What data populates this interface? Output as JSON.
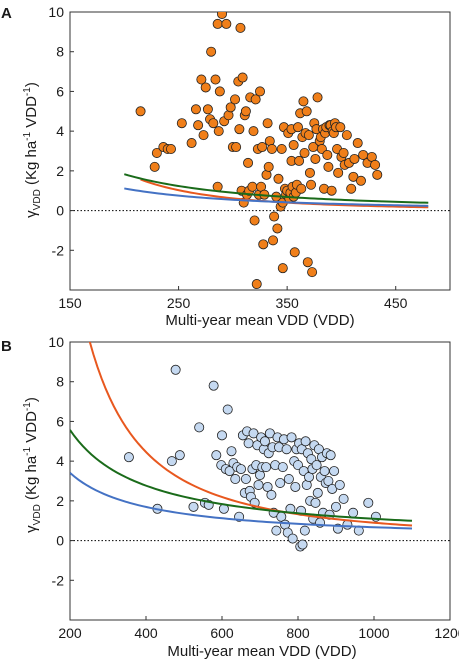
{
  "chart_data": [
    {
      "type": "scatter",
      "panel_label": "A",
      "xlabel": "Multi-year mean VDD (VDD)",
      "ylabel": "γVDD (Kg ha-1 VDD-1)",
      "xlim": [
        150,
        500
      ],
      "ylim": [
        -4,
        10
      ],
      "xticks": [
        150,
        250,
        350,
        450
      ],
      "yticks": [
        -2,
        0,
        2,
        4,
        6,
        8,
        10
      ],
      "grid": false,
      "zero_line": true,
      "marker_color": "#f07f1a",
      "points": [
        [
          215,
          5.0
        ],
        [
          228,
          2.2
        ],
        [
          230,
          2.9
        ],
        [
          236,
          3.2
        ],
        [
          240,
          3.1
        ],
        [
          243,
          3.1
        ],
        [
          253,
          4.4
        ],
        [
          262,
          3.4
        ],
        [
          266,
          5.1
        ],
        [
          268,
          4.3
        ],
        [
          271,
          6.6
        ],
        [
          273,
          3.8
        ],
        [
          275,
          6.2
        ],
        [
          277,
          5.1
        ],
        [
          279,
          4.6
        ],
        [
          280,
          8.0
        ],
        [
          282,
          4.4
        ],
        [
          284,
          6.6
        ],
        [
          286,
          9.4
        ],
        [
          286,
          1.2
        ],
        [
          287,
          4.0
        ],
        [
          288,
          6.0
        ],
        [
          290,
          9.9
        ],
        [
          292,
          4.5
        ],
        [
          294,
          9.4
        ],
        [
          296,
          4.8
        ],
        [
          298,
          5.2
        ],
        [
          300,
          3.2
        ],
        [
          302,
          5.6
        ],
        [
          303,
          3.2
        ],
        [
          305,
          6.5
        ],
        [
          306,
          4.1
        ],
        [
          307,
          9.2
        ],
        [
          308,
          1.0
        ],
        [
          309,
          6.7
        ],
        [
          310,
          0.4
        ],
        [
          311,
          4.8
        ],
        [
          312,
          5.0
        ],
        [
          313,
          0.8
        ],
        [
          314,
          2.4
        ],
        [
          315,
          1.0
        ],
        [
          316,
          5.7
        ],
        [
          318,
          1.2
        ],
        [
          319,
          4.0
        ],
        [
          320,
          -0.5
        ],
        [
          321,
          5.6
        ],
        [
          322,
          -3.7
        ],
        [
          323,
          3.1
        ],
        [
          324,
          0.8
        ],
        [
          325,
          6.0
        ],
        [
          326,
          1.2
        ],
        [
          327,
          3.2
        ],
        [
          328,
          -1.7
        ],
        [
          329,
          0.8
        ],
        [
          331,
          1.8
        ],
        [
          332,
          4.4
        ],
        [
          333,
          2.2
        ],
        [
          334,
          3.5
        ],
        [
          336,
          3.1
        ],
        [
          337,
          -1.5
        ],
        [
          338,
          -0.3
        ],
        [
          340,
          0.7
        ],
        [
          341,
          -0.9
        ],
        [
          342,
          1.6
        ],
        [
          344,
          0.2
        ],
        [
          345,
          3.1
        ],
        [
          346,
          0.4
        ],
        [
          346,
          -2.9
        ],
        [
          347,
          4.2
        ],
        [
          348,
          1.1
        ],
        [
          349,
          0.8
        ],
        [
          350,
          1.0
        ],
        [
          351,
          3.9
        ],
        [
          352,
          0.6
        ],
        [
          353,
          0.9
        ],
        [
          354,
          2.5
        ],
        [
          354,
          4.1
        ],
        [
          355,
          1.2
        ],
        [
          356,
          0.7
        ],
        [
          356,
          3.3
        ],
        [
          357,
          -2.1
        ],
        [
          358,
          0.9
        ],
        [
          359,
          1.3
        ],
        [
          360,
          4.2
        ],
        [
          361,
          2.5
        ],
        [
          362,
          4.9
        ],
        [
          363,
          1.1
        ],
        [
          364,
          3.7
        ],
        [
          365,
          5.5
        ],
        [
          366,
          2.9
        ],
        [
          367,
          3.9
        ],
        [
          368,
          5.0
        ],
        [
          369,
          -2.6
        ],
        [
          370,
          3.8
        ],
        [
          371,
          1.9
        ],
        [
          372,
          1.3
        ],
        [
          373,
          -3.1
        ],
        [
          374,
          3.2
        ],
        [
          375,
          4.4
        ],
        [
          376,
          2.6
        ],
        [
          377,
          4.1
        ],
        [
          378,
          5.7
        ],
        [
          380,
          3.5
        ],
        [
          381,
          3.7
        ],
        [
          382,
          3.1
        ],
        [
          383,
          4.1
        ],
        [
          384,
          1.1
        ],
        [
          385,
          3.9
        ],
        [
          386,
          4.2
        ],
        [
          387,
          2.8
        ],
        [
          388,
          2.2
        ],
        [
          389,
          4.3
        ],
        [
          390,
          4.3
        ],
        [
          391,
          1.0
        ],
        [
          392,
          4.0
        ],
        [
          393,
          3.9
        ],
        [
          394,
          4.4
        ],
        [
          395,
          4.2
        ],
        [
          396,
          3.1
        ],
        [
          397,
          1.9
        ],
        [
          399,
          4.2
        ],
        [
          400,
          2.7
        ],
        [
          402,
          2.9
        ],
        [
          403,
          2.3
        ],
        [
          405,
          3.8
        ],
        [
          407,
          2.4
        ],
        [
          409,
          1.1
        ],
        [
          411,
          1.7
        ],
        [
          412,
          2.6
        ],
        [
          415,
          3.4
        ],
        [
          418,
          1.5
        ],
        [
          420,
          2.8
        ],
        [
          424,
          2.4
        ],
        [
          428,
          2.7
        ],
        [
          431,
          2.3
        ],
        [
          433,
          1.8
        ]
      ],
      "curves": [
        {
          "color": "#e8581f",
          "a": 4.29,
          "b": -2.8,
          "x_range": [
            215,
            480
          ]
        },
        {
          "color": "#1a6b1a",
          "a": 3.04,
          "b": -1.76,
          "x_range": [
            200,
            480
          ]
        },
        {
          "color": "#4472c4",
          "a": 1.85,
          "b": -1.76,
          "x_range": [
            200,
            480
          ]
        }
      ]
    },
    {
      "type": "scatter",
      "panel_label": "B",
      "xlabel": "Multi-year mean VDD (VDD)",
      "ylabel": "γVDD (Kg ha-1 VDD-1)",
      "xlim": [
        200,
        1200
      ],
      "ylim": [
        -4,
        10
      ],
      "xticks": [
        200,
        400,
        600,
        800,
        1000,
        1200
      ],
      "yticks": [
        -2,
        0,
        2,
        4,
        6,
        8,
        10
      ],
      "grid": false,
      "zero_line": true,
      "marker_color": "#c5d9f1",
      "points": [
        [
          355,
          4.2
        ],
        [
          430,
          1.6
        ],
        [
          468,
          4.0
        ],
        [
          478,
          8.6
        ],
        [
          489,
          4.3
        ],
        [
          525,
          1.7
        ],
        [
          540,
          5.7
        ],
        [
          555,
          1.9
        ],
        [
          565,
          1.8
        ],
        [
          578,
          7.8
        ],
        [
          585,
          4.3
        ],
        [
          598,
          3.8
        ],
        [
          600,
          5.3
        ],
        [
          605,
          1.6
        ],
        [
          610,
          3.6
        ],
        [
          615,
          6.6
        ],
        [
          620,
          3.5
        ],
        [
          625,
          4.5
        ],
        [
          630,
          3.9
        ],
        [
          635,
          3.1
        ],
        [
          640,
          3.7
        ],
        [
          645,
          1.2
        ],
        [
          650,
          3.6
        ],
        [
          655,
          5.3
        ],
        [
          660,
          2.4
        ],
        [
          663,
          3.1
        ],
        [
          666,
          5.5
        ],
        [
          670,
          4.9
        ],
        [
          673,
          2.5
        ],
        [
          676,
          2.2
        ],
        [
          680,
          3.6
        ],
        [
          683,
          5.4
        ],
        [
          686,
          1.9
        ],
        [
          690,
          3.8
        ],
        [
          693,
          4.8
        ],
        [
          696,
          2.8
        ],
        [
          700,
          3.3
        ],
        [
          703,
          5.2
        ],
        [
          706,
          3.7
        ],
        [
          710,
          4.6
        ],
        [
          713,
          5.0
        ],
        [
          716,
          3.7
        ],
        [
          720,
          2.7
        ],
        [
          723,
          4.4
        ],
        [
          726,
          5.4
        ],
        [
          730,
          2.3
        ],
        [
          733,
          4.7
        ],
        [
          736,
          1.4
        ],
        [
          740,
          3.8
        ],
        [
          743,
          0.5
        ],
        [
          746,
          5.2
        ],
        [
          750,
          4.7
        ],
        [
          753,
          2.9
        ],
        [
          756,
          1.2
        ],
        [
          760,
          3.7
        ],
        [
          763,
          5.1
        ],
        [
          766,
          0.8
        ],
        [
          770,
          4.6
        ],
        [
          773,
          0.4
        ],
        [
          776,
          3.1
        ],
        [
          780,
          1.6
        ],
        [
          783,
          5.2
        ],
        [
          786,
          0.1
        ],
        [
          790,
          4.0
        ],
        [
          793,
          2.7
        ],
        [
          796,
          4.6
        ],
        [
          800,
          3.8
        ],
        [
          803,
          4.9
        ],
        [
          806,
          -0.3
        ],
        [
          808,
          1.5
        ],
        [
          810,
          4.6
        ],
        [
          812,
          -0.2
        ],
        [
          815,
          3.5
        ],
        [
          818,
          0.5
        ],
        [
          820,
          5.0
        ],
        [
          823,
          2.8
        ],
        [
          826,
          4.4
        ],
        [
          829,
          3.2
        ],
        [
          832,
          2.0
        ],
        [
          835,
          4.1
        ],
        [
          838,
          3.6
        ],
        [
          840,
          1.1
        ],
        [
          843,
          4.8
        ],
        [
          846,
          1.9
        ],
        [
          849,
          3.8
        ],
        [
          852,
          2.4
        ],
        [
          855,
          4.6
        ],
        [
          858,
          0.9
        ],
        [
          860,
          3.2
        ],
        [
          863,
          4.2
        ],
        [
          866,
          1.4
        ],
        [
          870,
          3.5
        ],
        [
          873,
          2.9
        ],
        [
          876,
          4.4
        ],
        [
          880,
          3.0
        ],
        [
          883,
          1.3
        ],
        [
          886,
          4.3
        ],
        [
          890,
          2.6
        ],
        [
          895,
          3.5
        ],
        [
          900,
          1.7
        ],
        [
          905,
          0.6
        ],
        [
          910,
          2.8
        ],
        [
          920,
          2.1
        ],
        [
          930,
          0.8
        ],
        [
          945,
          1.4
        ],
        [
          960,
          0.5
        ],
        [
          985,
          1.9
        ],
        [
          1005,
          1.2
        ]
      ],
      "curves": [
        {
          "color": "#e8581f",
          "a": 15.0,
          "b": -1.75,
          "x_range": [
            240,
            1100
          ]
        },
        {
          "color": "#1a6b1a",
          "a": 5.57,
          "b": -1.01,
          "x_range": [
            200,
            1100
          ]
        },
        {
          "color": "#4472c4",
          "a": 3.41,
          "b": -1.01,
          "x_range": [
            200,
            1100
          ]
        }
      ]
    }
  ]
}
